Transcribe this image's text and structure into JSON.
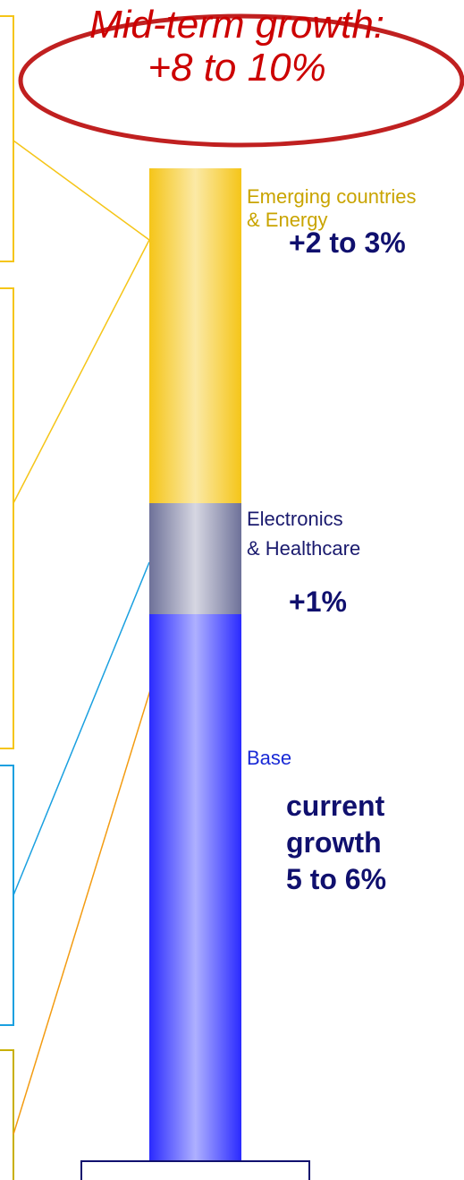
{
  "headline": {
    "line1": "Mid-term growth:",
    "line2": "+8 to 10%"
  },
  "chart_data": {
    "type": "bar",
    "title": "",
    "xlabel": "",
    "ylabel": "",
    "stacked": true,
    "grid": false,
    "series": [
      {
        "name": "Base",
        "value": "current growth 5 to 6%",
        "color": "#2a2aff"
      },
      {
        "name": "Electronics & Healthcare",
        "value": "+1%",
        "color": "#6e7199"
      },
      {
        "name": "Emerging countries & Energy",
        "value": "+2 to 3%",
        "color": "#f5c518"
      }
    ],
    "labels": {
      "emerging_line1": "Emerging countries",
      "emerging_line2": "& Energy",
      "emerging_value": "+2 to 3%",
      "electronics_line1": "Electronics",
      "electronics_line2": "& Healthcare",
      "electronics_value": "+1%",
      "base": "Base",
      "base_value_line1": "current",
      "base_value_line2": "growth",
      "base_value_line3": "5 to 6%"
    },
    "colors": {
      "emerging_label": "#c9a400",
      "electronics_label": "#1a1a6e",
      "base_label": "#1a2ad6",
      "value_text": "#10106e",
      "headline": "#cc0000",
      "ellipse": "#c02020"
    }
  }
}
